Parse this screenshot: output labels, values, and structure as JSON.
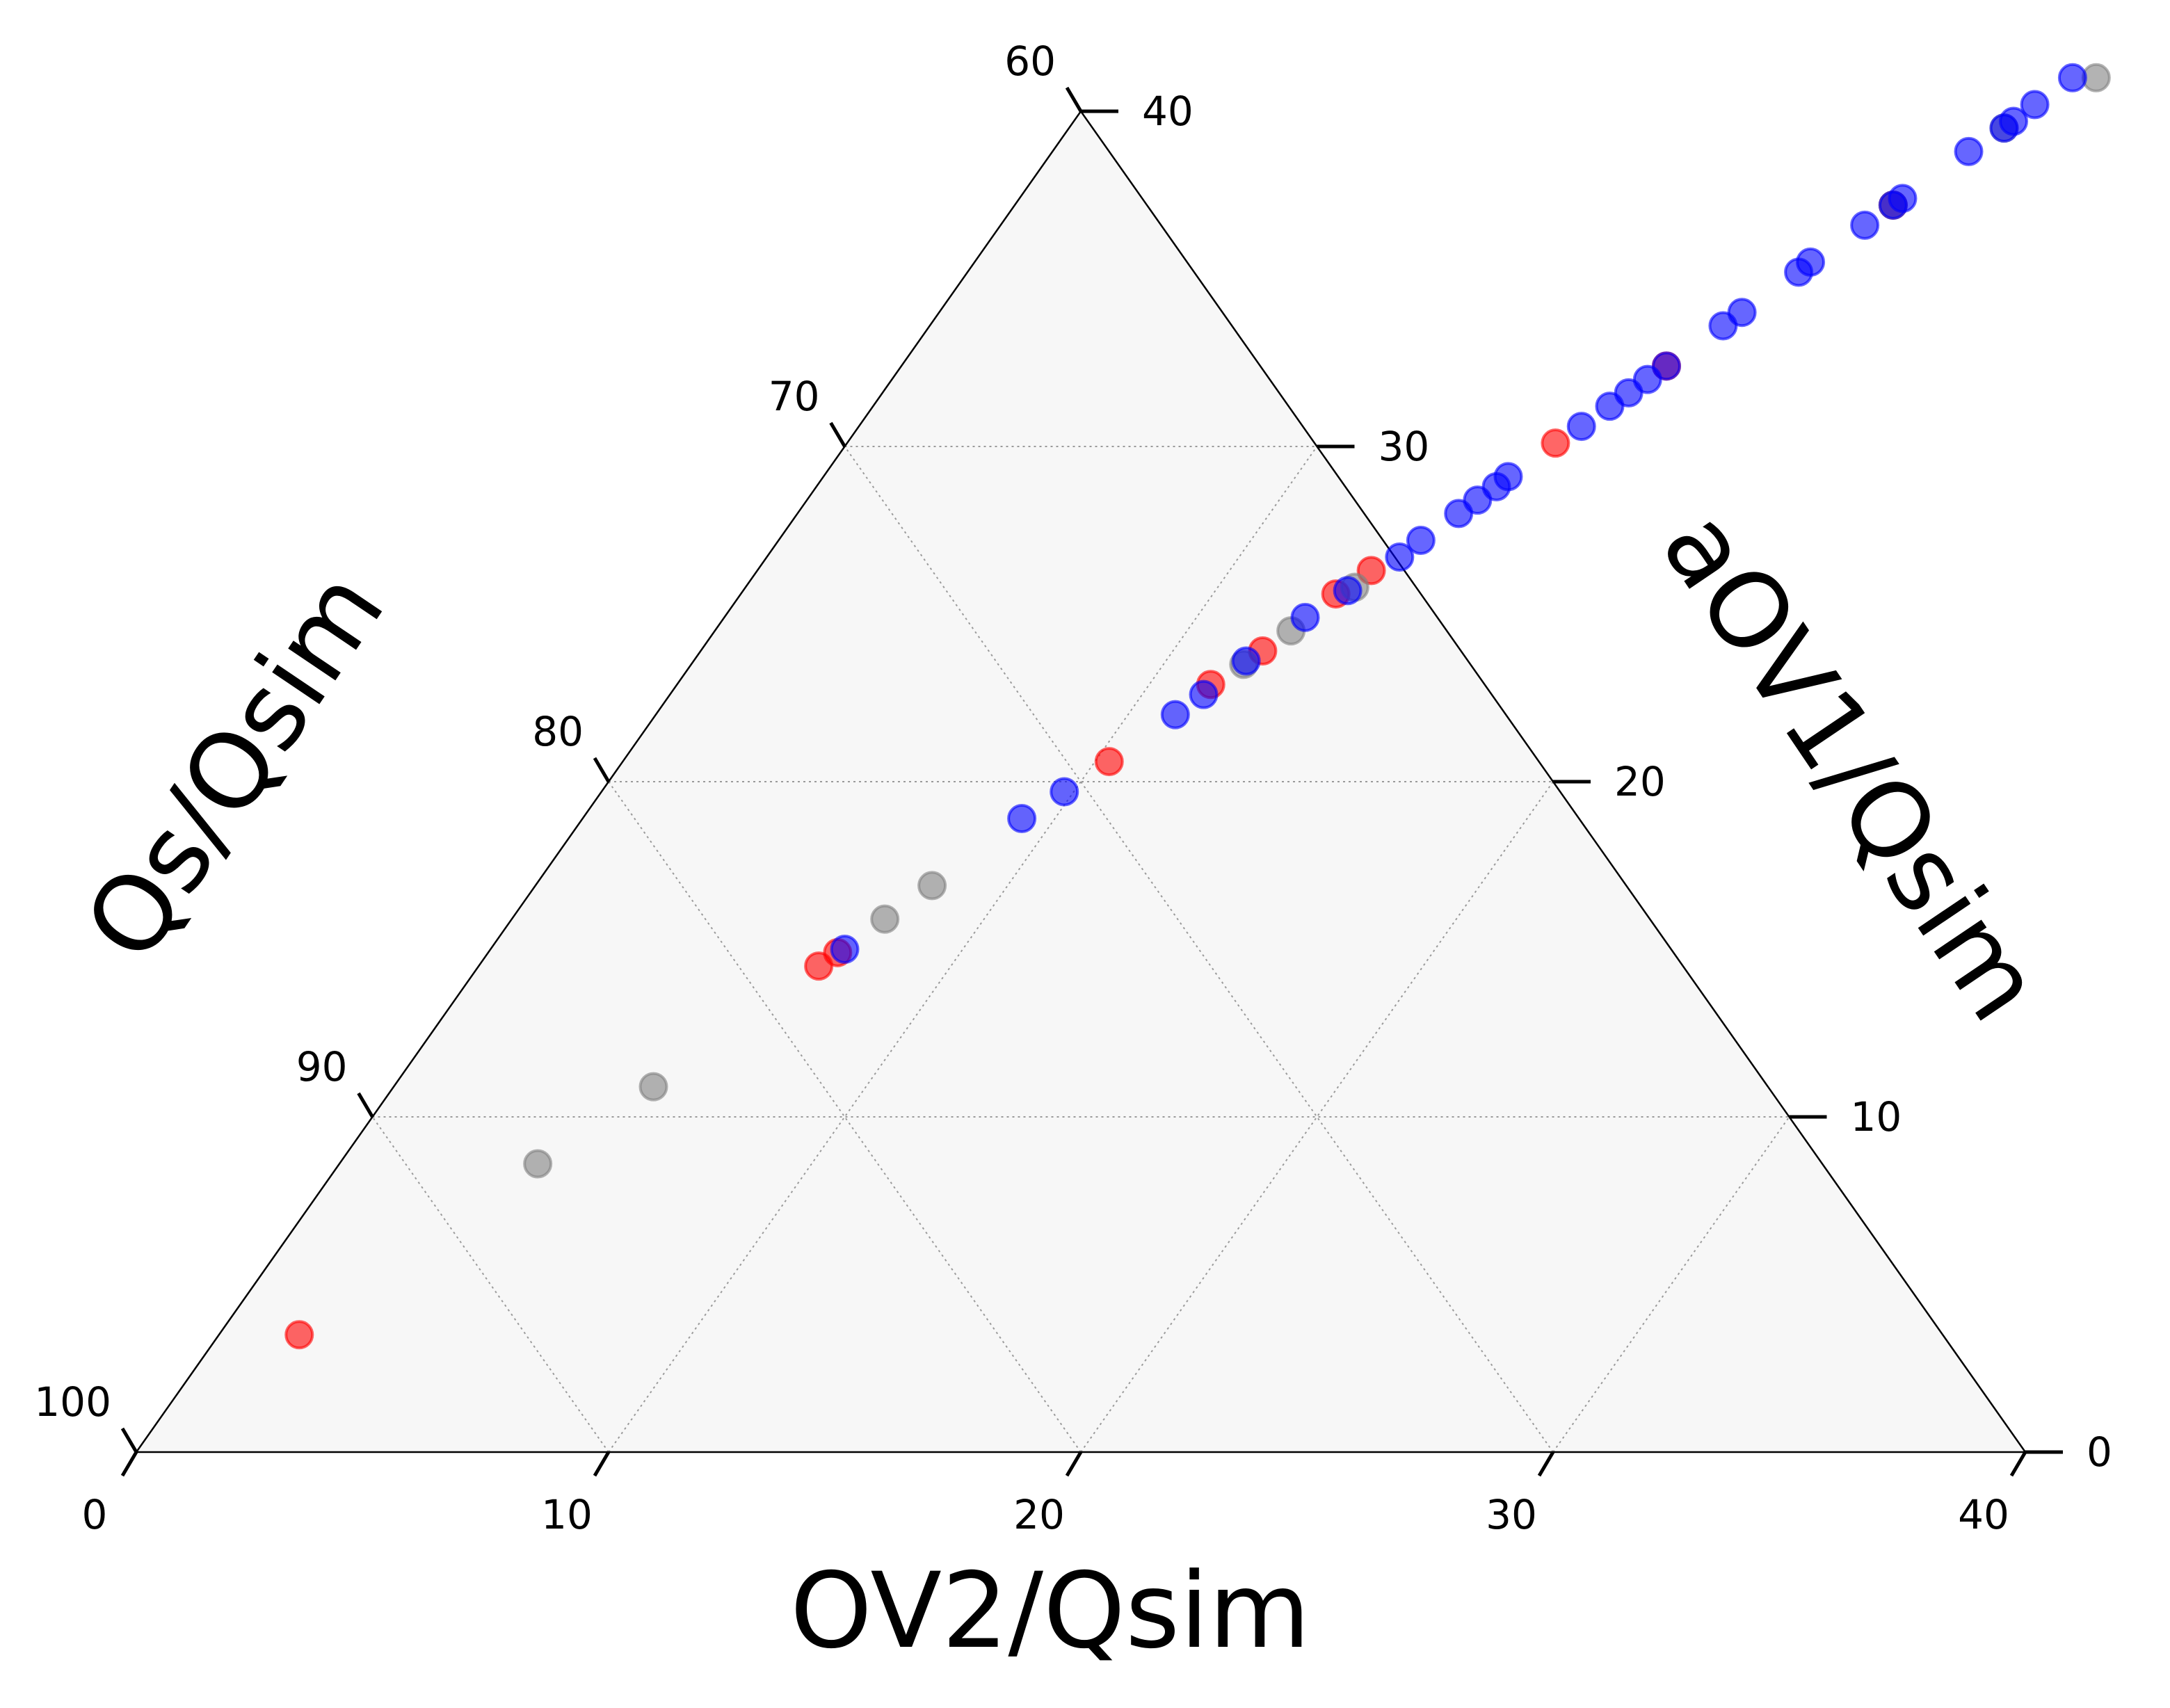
{
  "chart_data": {
    "type": "ternary-scatter",
    "axes": {
      "bottom": {
        "label": "OV2/Qsim",
        "ticks": [
          "0",
          "10",
          "20",
          "30",
          "40"
        ],
        "tick_values": [
          0,
          10,
          20,
          30,
          40
        ]
      },
      "left": {
        "label": "Qs/Qsim",
        "ticks": [
          "60",
          "70",
          "80",
          "90",
          "100"
        ],
        "tick_values": [
          60,
          70,
          80,
          90,
          100
        ]
      },
      "right": {
        "label": "aOV1/Qsim",
        "ticks": [
          "0",
          "10",
          "20",
          "30",
          "40"
        ],
        "tick_values": [
          0,
          10,
          20,
          30,
          40
        ]
      }
    },
    "ranges": {
      "OV2/Qsim": [
        0,
        40
      ],
      "aOV1/Qsim": [
        0,
        40
      ],
      "Qs/Qsim": [
        60,
        100
      ]
    },
    "grid": true,
    "background": "#f7f7f7",
    "series": [
      {
        "color": "#ff0000",
        "points": [
          {
            "ov2": 1.7,
            "aov1": 3.5
          },
          {
            "ov2": 7.2,
            "aov1": 14.5
          },
          {
            "ov2": 7.4,
            "aov1": 14.9
          },
          {
            "ov2": 10.3,
            "aov1": 20.6
          },
          {
            "ov2": 11.3,
            "aov1": 22.9
          },
          {
            "ov2": 11.9,
            "aov1": 23.9
          },
          {
            "ov2": 12.6,
            "aov1": 25.6
          },
          {
            "ov2": 13.0,
            "aov1": 26.3
          },
          {
            "ov2": 15.0,
            "aov1": 30.1
          },
          {
            "ov2": 16.2,
            "aov1": 32.4
          },
          {
            "ov2": 18.6,
            "aov1": 37.2
          }
        ]
      },
      {
        "color": "#808080",
        "points": [
          {
            "ov2": 4.2,
            "aov1": 8.6
          },
          {
            "ov2": 5.5,
            "aov1": 10.9
          },
          {
            "ov2": 7.9,
            "aov1": 15.9
          },
          {
            "ov2": 8.4,
            "aov1": 16.9
          },
          {
            "ov2": 11.7,
            "aov1": 23.5
          },
          {
            "ov2": 12.2,
            "aov1": 24.5
          },
          {
            "ov2": 12.9,
            "aov1": 25.8
          },
          {
            "ov2": 18.6,
            "aov1": 37.2
          },
          {
            "ov2": 19.8,
            "aov1": 39.5
          },
          {
            "ov2": 21.0,
            "aov1": 41.0
          }
        ]
      },
      {
        "color": "#0000ff",
        "points": [
          {
            "ov2": 7.5,
            "aov1": 15.0
          },
          {
            "ov2": 9.3,
            "aov1": 18.9
          },
          {
            "ov2": 9.8,
            "aov1": 19.7
          },
          {
            "ov2": 11.0,
            "aov1": 22.0
          },
          {
            "ov2": 11.3,
            "aov1": 22.6
          },
          {
            "ov2": 11.7,
            "aov1": 23.6
          },
          {
            "ov2": 12.3,
            "aov1": 24.9
          },
          {
            "ov2": 12.8,
            "aov1": 25.7
          },
          {
            "ov2": 13.4,
            "aov1": 26.7
          },
          {
            "ov2": 13.6,
            "aov1": 27.2
          },
          {
            "ov2": 14.0,
            "aov1": 28.0
          },
          {
            "ov2": 14.2,
            "aov1": 28.4
          },
          {
            "ov2": 14.4,
            "aov1": 28.8
          },
          {
            "ov2": 14.5,
            "aov1": 29.1
          },
          {
            "ov2": 15.3,
            "aov1": 30.6
          },
          {
            "ov2": 15.6,
            "aov1": 31.2
          },
          {
            "ov2": 15.8,
            "aov1": 31.6
          },
          {
            "ov2": 16.0,
            "aov1": 32.0
          },
          {
            "ov2": 16.2,
            "aov1": 32.4
          },
          {
            "ov2": 16.8,
            "aov1": 33.6
          },
          {
            "ov2": 17.0,
            "aov1": 34.0
          },
          {
            "ov2": 17.6,
            "aov1": 35.2
          },
          {
            "ov2": 17.7,
            "aov1": 35.5
          },
          {
            "ov2": 18.3,
            "aov1": 36.6
          },
          {
            "ov2": 18.6,
            "aov1": 37.2
          },
          {
            "ov2": 18.7,
            "aov1": 37.4
          },
          {
            "ov2": 19.4,
            "aov1": 38.8
          },
          {
            "ov2": 19.8,
            "aov1": 39.5
          },
          {
            "ov2": 19.9,
            "aov1": 39.7
          },
          {
            "ov2": 20.1,
            "aov1": 40.2
          },
          {
            "ov2": 20.5,
            "aov1": 41.0
          }
        ]
      }
    ]
  }
}
